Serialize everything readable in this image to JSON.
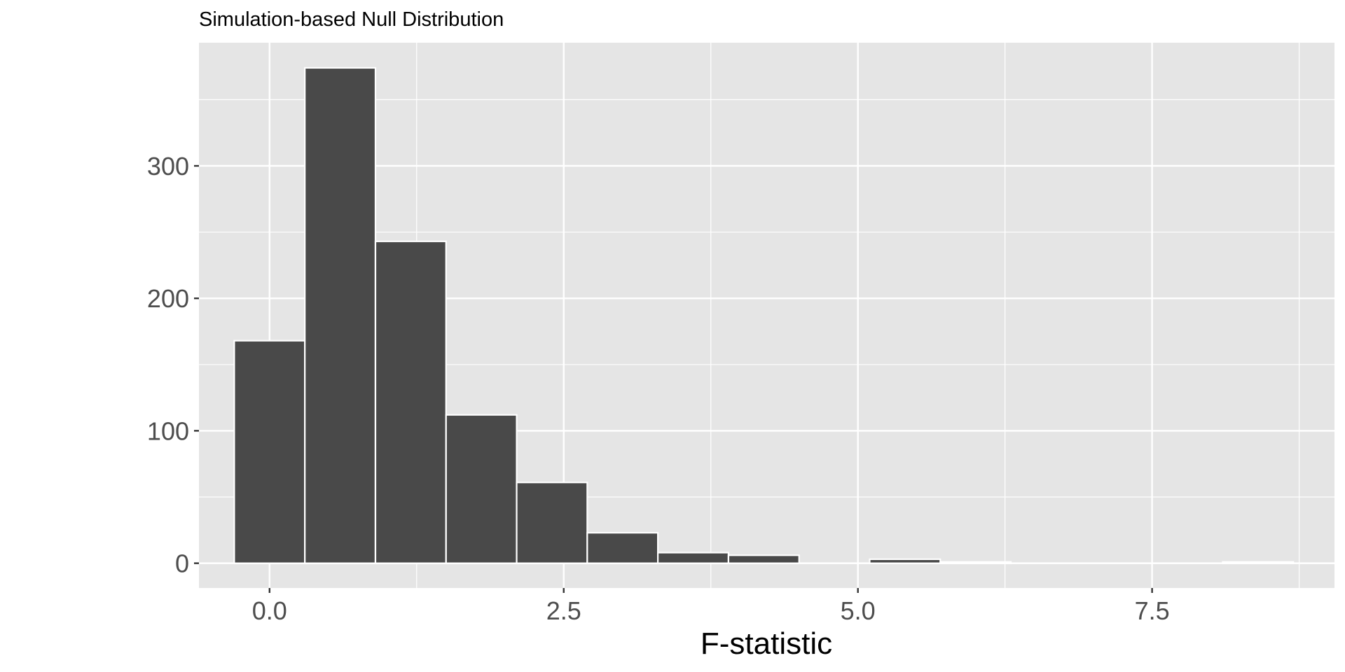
{
  "chart_data": {
    "type": "bar",
    "title": "Simulation-based Null Distribution",
    "xlabel": "F-statistic",
    "ylabel": "",
    "bin_width": 0.6,
    "bin_centers": [
      0.0,
      0.6,
      1.2,
      1.8,
      2.4,
      3.0,
      3.6,
      4.2,
      4.8,
      5.4,
      6.0,
      6.6,
      7.2,
      7.8,
      8.4
    ],
    "values": [
      168,
      374,
      243,
      112,
      61,
      23,
      8,
      6,
      0,
      3,
      1,
      0,
      0,
      0,
      1
    ],
    "xlim": [
      -0.6,
      9.05
    ],
    "ylim": [
      -18.7,
      393
    ],
    "x_ticks": [
      0,
      2.5,
      5,
      7.5
    ],
    "x_tick_labels": [
      "0.0",
      "2.5",
      "5.0",
      "7.5"
    ],
    "y_ticks": [
      0,
      100,
      200,
      300
    ],
    "y_tick_labels": [
      "0",
      "100",
      "200",
      "300"
    ],
    "grid": true,
    "colors": {
      "panel": "#e5e5e5",
      "bar_fill": "#494949",
      "bar_outline": "#ffffff",
      "grid": "#ffffff"
    }
  }
}
